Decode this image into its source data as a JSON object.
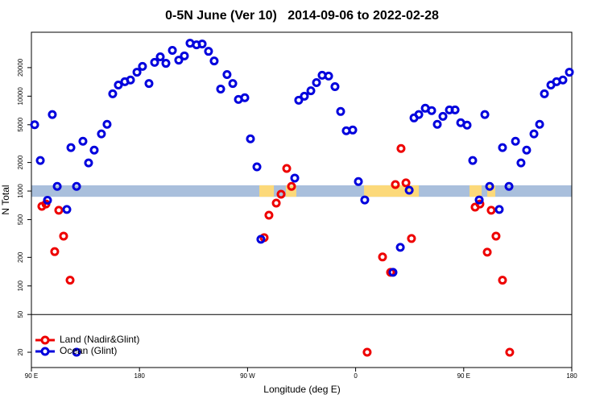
{
  "chart_data": {
    "type": "scatter",
    "title": "0-5N June (Ver 10)   2014-09-06 to 2022-02-28",
    "xlabel": "Longitude (deg E)",
    "ylabel": "N Total",
    "log_y": true,
    "xlim": [
      90,
      540
    ],
    "ylim": [
      13.8,
      47200
    ],
    "xticks": [
      {
        "value": 90,
        "label": "90 E"
      },
      180,
      {
        "value": 270,
        "label": "90 W"
      },
      {
        "value": 360,
        "label": "0"
      },
      {
        "value": 450,
        "label": "90 E"
      },
      {
        "value": 540,
        "label": "180"
      }
    ],
    "yticks": [
      20,
      50,
      100,
      200,
      500,
      1000,
      2000,
      5000,
      10000,
      20000
    ],
    "hline": 50,
    "band": {
      "range": [
        870,
        1150
      ],
      "color": "#a9bfdc"
    },
    "band_patches": {
      "color": "#fcd97a",
      "x": [
        [
          279.8,
          291.9
        ],
        [
          301.9,
          310.6
        ],
        [
          367,
          412.6
        ],
        [
          454.8,
          464.9
        ],
        [
          469.6,
          476.3
        ]
      ]
    },
    "legend": "bottom-left",
    "series": [
      {
        "name": "Land (Nadir&Glint)",
        "color": "#ee0000",
        "x": [
          98.7,
          102.1,
          109.4,
          112.8,
          116.8,
          122.2,
          283.8,
          287.8,
          293.9,
          297.9,
          302.6,
          306.6,
          369.6,
          382.4,
          389.1,
          393.1,
          397.8,
          401.9,
          406.5,
          459.5,
          463.5,
          469.6,
          472.9,
          476.9,
          482.3,
          488.3
        ],
        "values": [
          690,
          730,
          230,
          627,
          335,
          115,
          323,
          557,
          746,
          925,
          1730,
          1120,
          20,
          202,
          139,
          1170,
          2810,
          1220,
          316,
          677,
          730,
          227,
          627,
          335,
          115,
          20
        ]
      },
      {
        "name": "Ocean (Glint)",
        "color": "#0000dd",
        "x": [
          92.7,
          97.4,
          103.4,
          107.4,
          111.5,
          119.5,
          122.9,
          127.6,
          127.6,
          132.9,
          137.6,
          142.3,
          148.3,
          153.0,
          157.7,
          162.4,
          167.8,
          172.5,
          177.9,
          182.5,
          187.9,
          192.6,
          197.3,
          202.0,
          207.4,
          212.7,
          217.4,
          222.1,
          227.5,
          232.2,
          237.5,
          242.2,
          247.6,
          252.9,
          257.7,
          262.4,
          267.7,
          272.4,
          277.8,
          281.1,
          309.3,
          312.6,
          317.3,
          322.7,
          327.4,
          332.1,
          337.5,
          342.8,
          347.5,
          352.2,
          357.6,
          362.3,
          367.6,
          391.1,
          397.2,
          404.6,
          408.6,
          412.6,
          418.0,
          423.3,
          428.0,
          432.7,
          438.1,
          442.8,
          447.5,
          452.8,
          457.5,
          462.9,
          467.6,
          471.6,
          479.6,
          482.3,
          487.7,
          493.1,
          497.7,
          502.4,
          508.5,
          513.2,
          517.2,
          522.6,
          527.3,
          532.6,
          538.0
        ],
        "values": [
          5000,
          2100,
          800,
          6400,
          1120,
          640,
          2870,
          1120,
          20,
          3350,
          1980,
          2700,
          4000,
          5050,
          10600,
          13100,
          14200,
          14800,
          17900,
          20600,
          13600,
          22700,
          26000,
          22200,
          30400,
          24000,
          26600,
          36200,
          34800,
          35500,
          29700,
          23500,
          11900,
          16900,
          13600,
          9240,
          9630,
          3550,
          1800,
          310,
          1370,
          9070,
          10000,
          11400,
          13900,
          16600,
          16300,
          12600,
          6900,
          4320,
          4400,
          1260,
          806,
          139,
          255,
          1020,
          5900,
          6400,
          7460,
          7050,
          5050,
          6130,
          7170,
          7170,
          5250,
          4950,
          2100,
          806,
          6400,
          1120,
          640,
          2870,
          1120,
          3350,
          1980,
          2700,
          4000,
          5050,
          10600,
          13100,
          14200,
          14800,
          17900
        ]
      }
    ]
  }
}
